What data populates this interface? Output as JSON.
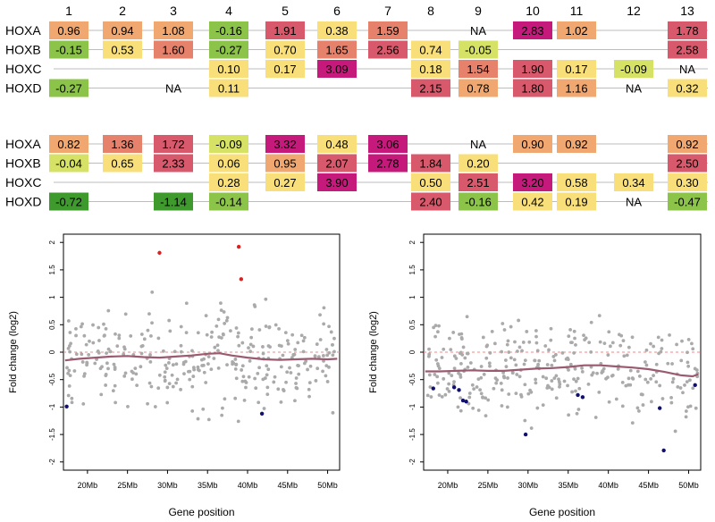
{
  "heatmap": {
    "column_labels": [
      "1",
      "2",
      "3",
      "4",
      "5",
      "6",
      "7",
      "8",
      "9",
      "10",
      "11",
      "12",
      "13"
    ],
    "palette": {
      "dark_green": "#3e9a2c",
      "green": "#8cc44a",
      "yellow_green": "#d6e266",
      "yellow": "#f8df7a",
      "orange": "#f0a870",
      "salmon": "#e6826b",
      "red": "#d8596b",
      "magenta": "#c51a7c",
      "na_text": "#000000"
    },
    "panels": [
      {
        "rows": [
          {
            "label": "HOXA",
            "values": [
              "0.96",
              "0.94",
              "1.08",
              "-0.16",
              "1.91",
              "0.38",
              "1.59",
              null,
              "NA",
              "2.83",
              "1.02",
              null,
              "1.78"
            ]
          },
          {
            "label": "HOXB",
            "values": [
              "-0.15",
              "0.53",
              "1.60",
              "-0.27",
              "0.70",
              "1.65",
              "2.56",
              "0.74",
              "-0.05",
              null,
              null,
              null,
              "2.58"
            ]
          },
          {
            "label": "HOXC",
            "values": [
              null,
              null,
              null,
              "0.10",
              "0.17",
              "3.09",
              null,
              "0.18",
              "1.54",
              "1.90",
              "0.17",
              "-0.09",
              "NA"
            ]
          },
          {
            "label": "HOXD",
            "values": [
              "-0.27",
              null,
              "NA",
              "0.11",
              null,
              null,
              null,
              "2.15",
              "0.78",
              "1.80",
              "1.16",
              "NA",
              "0.32"
            ]
          }
        ]
      },
      {
        "rows": [
          {
            "label": "HOXA",
            "values": [
              "0.82",
              "1.36",
              "1.72",
              "-0.09",
              "3.32",
              "0.48",
              "3.06",
              null,
              "NA",
              "0.90",
              "0.92",
              null,
              "0.92"
            ]
          },
          {
            "label": "HOXB",
            "values": [
              "-0.04",
              "0.65",
              "2.33",
              "0.06",
              "0.95",
              "2.07",
              "2.78",
              "1.84",
              "0.20",
              null,
              null,
              null,
              "2.50"
            ]
          },
          {
            "label": "HOXC",
            "values": [
              null,
              null,
              null,
              "0.28",
              "0.27",
              "3.90",
              null,
              "0.50",
              "2.51",
              "3.20",
              "0.58",
              "0.34",
              "0.30"
            ]
          },
          {
            "label": "HOXD",
            "values": [
              "-0.72",
              null,
              "-1.14",
              "-0.14",
              null,
              null,
              null,
              "2.40",
              "-0.16",
              "0.42",
              "0.19",
              "NA",
              "-0.47"
            ]
          }
        ]
      }
    ]
  },
  "chart_data": [
    {
      "type": "scatter",
      "xlabel": "Gene position",
      "ylabel": "Fold change (log2)",
      "xlim": [
        17,
        51.5
      ],
      "ylim": [
        -2.15,
        2.15
      ],
      "xticks": [
        20,
        25,
        30,
        35,
        40,
        45,
        50
      ],
      "xtick_labels": [
        "20Mb",
        "25Mb",
        "30Mb",
        "35Mb",
        "40Mb",
        "45Mb",
        "50Mb"
      ],
      "yticks": [
        -2,
        -1.5,
        -1,
        -0.5,
        0,
        0.5,
        1,
        1.5,
        2
      ],
      "ytick_labels": [
        "-2",
        "-1.5",
        "-1",
        "-0.5",
        "0",
        "0.5",
        "1",
        "1.5",
        "2"
      ],
      "reference_line": 0,
      "colors": {
        "background": "#aaaaaa",
        "up": "#e0201e",
        "down": "#101070",
        "trend": "#9a5a70",
        "reference": "#ee8888"
      },
      "highlight_up": [
        {
          "x": 29.0,
          "y": 1.81
        },
        {
          "x": 38.9,
          "y": 1.92
        },
        {
          "x": 39.2,
          "y": 1.33
        }
      ],
      "highlight_down": [
        {
          "x": 17.4,
          "y": -0.99
        },
        {
          "x": 41.8,
          "y": -1.12
        }
      ],
      "trend": [
        [
          17.2,
          -0.15
        ],
        [
          19,
          -0.12
        ],
        [
          21,
          -0.1
        ],
        [
          23,
          -0.08
        ],
        [
          25,
          -0.07
        ],
        [
          27,
          -0.09
        ],
        [
          29,
          -0.1
        ],
        [
          31,
          -0.08
        ],
        [
          33,
          -0.06
        ],
        [
          35,
          -0.03
        ],
        [
          36.5,
          -0.02
        ],
        [
          38,
          -0.06
        ],
        [
          40,
          -0.1
        ],
        [
          42,
          -0.13
        ],
        [
          44,
          -0.14
        ],
        [
          46,
          -0.13
        ],
        [
          48,
          -0.12
        ],
        [
          50,
          -0.13
        ],
        [
          51.2,
          -0.12
        ]
      ]
    },
    {
      "type": "scatter",
      "xlabel": "Gene position",
      "ylabel": "Fold change (log2)",
      "xlim": [
        17,
        51.5
      ],
      "ylim": [
        -2.15,
        2.15
      ],
      "xticks": [
        20,
        25,
        30,
        35,
        40,
        45,
        50
      ],
      "xtick_labels": [
        "20Mb",
        "25Mb",
        "30Mb",
        "35Mb",
        "40Mb",
        "45Mb",
        "50Mb"
      ],
      "yticks": [
        -2,
        -1.5,
        -1,
        -0.5,
        0,
        0.5,
        1,
        1.5,
        2
      ],
      "ytick_labels": [
        "-2",
        "-1.5",
        "-1",
        "-0.5",
        "0",
        "0.5",
        "1",
        "1.5",
        "2"
      ],
      "reference_line": 0,
      "colors": {
        "background": "#aaaaaa",
        "up": "#e0201e",
        "down": "#101070",
        "trend": "#9a5a70",
        "reference": "#ee8888"
      },
      "highlight_up": [],
      "highlight_down": [
        {
          "x": 18.2,
          "y": -0.66
        },
        {
          "x": 20.8,
          "y": -0.64
        },
        {
          "x": 21.4,
          "y": -0.69
        },
        {
          "x": 21.9,
          "y": -0.88
        },
        {
          "x": 22.3,
          "y": -0.9
        },
        {
          "x": 29.7,
          "y": -1.5
        },
        {
          "x": 36.2,
          "y": -0.78
        },
        {
          "x": 36.8,
          "y": -0.82
        },
        {
          "x": 46.4,
          "y": -1.02
        },
        {
          "x": 46.9,
          "y": -1.79
        },
        {
          "x": 50.8,
          "y": -0.6
        }
      ],
      "trend": [
        [
          17.2,
          -0.35
        ],
        [
          19,
          -0.35
        ],
        [
          21,
          -0.34
        ],
        [
          23,
          -0.33
        ],
        [
          25,
          -0.34
        ],
        [
          27,
          -0.34
        ],
        [
          29,
          -0.32
        ],
        [
          31,
          -0.3
        ],
        [
          33,
          -0.29
        ],
        [
          35,
          -0.27
        ],
        [
          37,
          -0.24
        ],
        [
          39,
          -0.24
        ],
        [
          41,
          -0.26
        ],
        [
          43,
          -0.28
        ],
        [
          45,
          -0.31
        ],
        [
          47,
          -0.36
        ],
        [
          49,
          -0.42
        ],
        [
          50.5,
          -0.44
        ],
        [
          51.2,
          -0.4
        ]
      ]
    }
  ]
}
